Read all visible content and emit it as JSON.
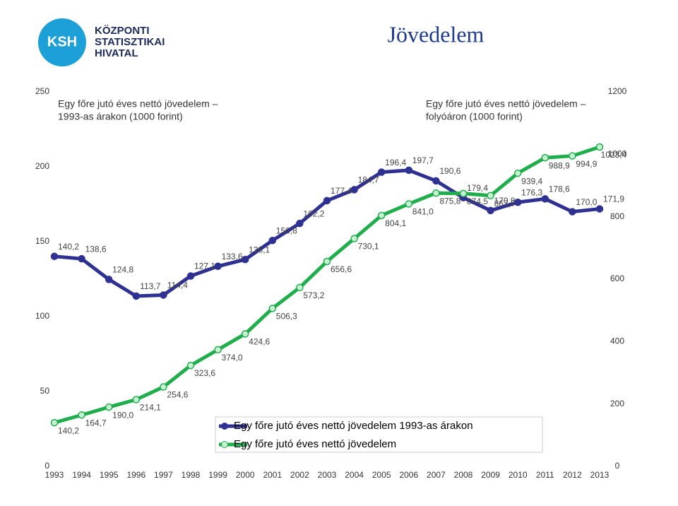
{
  "header": {
    "logo_short": "KSH",
    "logo_lines": [
      "KÖZPONTI",
      "STATISZTIKAI",
      "HIVATAL"
    ],
    "title": "Jövedelem"
  },
  "chart_data": {
    "type": "line",
    "categories": [
      "1993",
      "1994",
      "1995",
      "1996",
      "1997",
      "1998",
      "1999",
      "2000",
      "2001",
      "2002",
      "2003",
      "2004",
      "2005",
      "2006",
      "2007",
      "2008",
      "2009",
      "2010",
      "2011",
      "2012",
      "2013"
    ],
    "annotations": [
      {
        "lines": [
          "Egy főre jutó éves nettó jövedelem –",
          "1993-as árakon (1000 forint)"
        ]
      },
      {
        "lines": [
          "Egy főre jutó éves nettó jövedelem –",
          "folyóáron (1000 forint)"
        ]
      }
    ],
    "series": [
      {
        "name": "Egy főre jutó éves nettó jövedelem 1993-as árakon",
        "color": "#2e3192",
        "axis": "y",
        "values": [
          140.2,
          138.6,
          124.8,
          113.7,
          114.4,
          127.1,
          133.6,
          138.1,
          150.8,
          162.2,
          177.4,
          184.7,
          196.4,
          197.7,
          190.6,
          179.4,
          170.8,
          176.3,
          178.6,
          170.0,
          171.9
        ],
        "value_labels": [
          "140,2",
          "138,6",
          "124,8",
          "113,7",
          "114,4",
          "127,1",
          "133,6",
          "138,1",
          "150,8",
          "162,2",
          "177,4",
          "184,7",
          "196,4",
          "197,7",
          "190,6",
          "179,4",
          "170,8",
          "176,3",
          "178,6",
          "170,0",
          "171,9"
        ]
      },
      {
        "name": "Egy főre jutó éves nettó jövedelem",
        "color": "#1fae4b",
        "axis": "y2",
        "values": [
          140.2,
          164.7,
          190.0,
          214.1,
          254.6,
          323.6,
          374.0,
          424.6,
          506.3,
          573.2,
          656.6,
          730.1,
          804.1,
          841.0,
          875.8,
          874.5,
          867.7,
          939.4,
          988.9,
          994.9,
          1023.4
        ],
        "value_labels": [
          "140,2",
          "164,7",
          "190,0",
          "214,1",
          "254,6",
          "323,6",
          "374,0",
          "424,6",
          "506,3",
          "573,2",
          "656,6",
          "730,1",
          "804,1",
          "841,0",
          "875,8",
          "874,5",
          "867,7",
          "939,4",
          "988,9",
          "994,9",
          "1023,4"
        ]
      }
    ],
    "ylim": [
      0,
      250
    ],
    "yticks": [
      0,
      50,
      100,
      150,
      200,
      250
    ],
    "y2lim": [
      0,
      1200
    ],
    "y2ticks": [
      0,
      200,
      400,
      600,
      800,
      1000,
      1200
    ]
  }
}
